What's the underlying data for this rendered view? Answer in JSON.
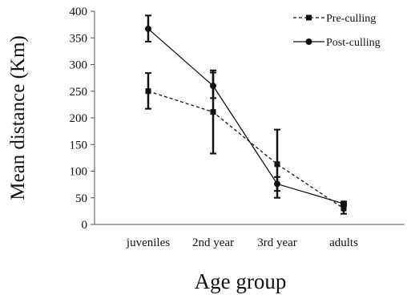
{
  "chart_data": {
    "type": "line",
    "title": "",
    "xlabel": "Age group",
    "ylabel": "Mean distance (Km)",
    "categories": [
      "juveniles",
      "2nd year",
      "3rd year",
      "adults"
    ],
    "ylim": [
      0,
      400
    ],
    "yticks": [
      0,
      50,
      100,
      150,
      200,
      250,
      300,
      350,
      400
    ],
    "grid": false,
    "legend_position": "top-right",
    "series": [
      {
        "name": "Pre-culling",
        "style": "dashed",
        "marker": "square",
        "color": "#111111",
        "values": [
          250,
          211,
          113,
          30
        ],
        "error_low": [
          217,
          133,
          50,
          20
        ],
        "error_high": [
          284,
          289,
          178,
          38
        ]
      },
      {
        "name": "Post-culling",
        "style": "solid",
        "marker": "circle",
        "color": "#111111",
        "values": [
          367,
          260,
          76,
          39
        ],
        "error_low": [
          343,
          237,
          63,
          35
        ],
        "error_high": [
          392,
          285,
          89,
          43
        ]
      }
    ]
  }
}
